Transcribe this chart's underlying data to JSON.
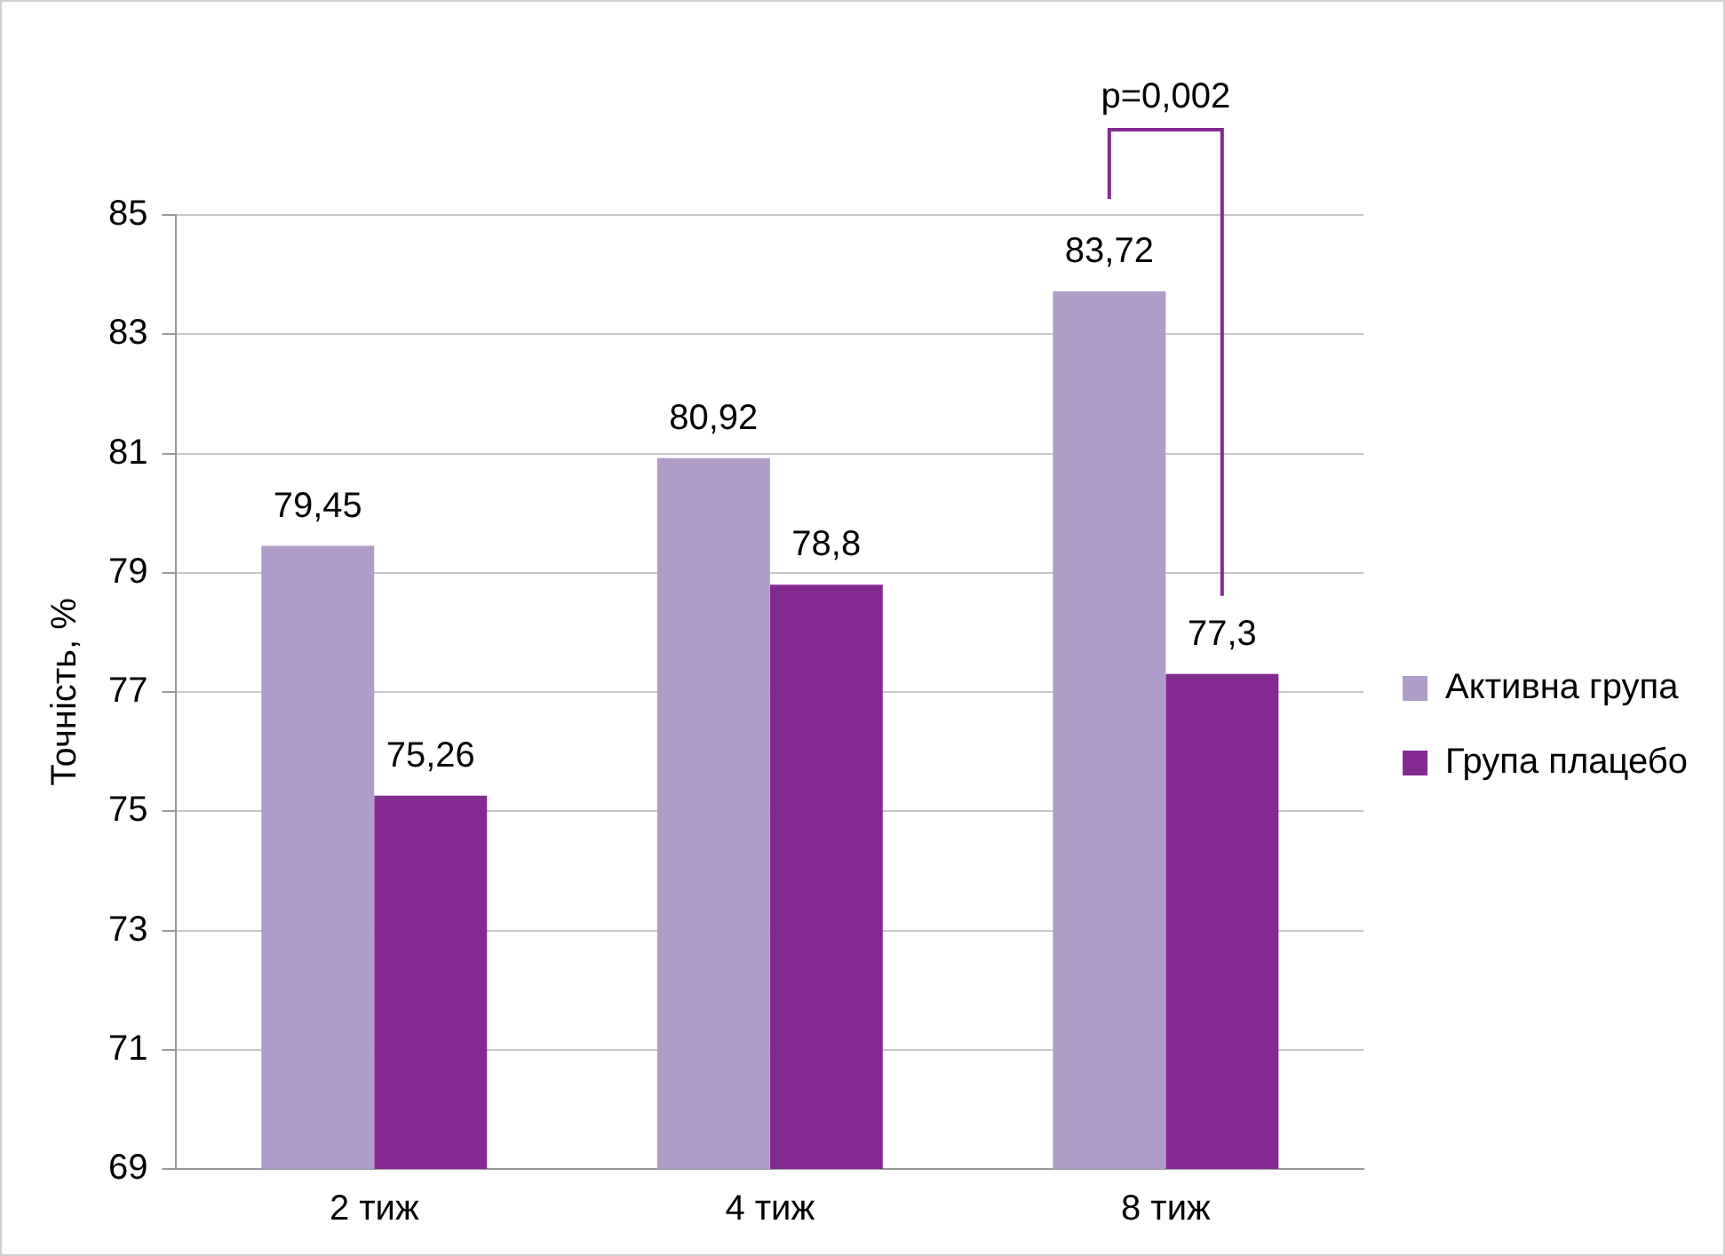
{
  "chart_data": {
    "type": "bar",
    "ylabel": "Точність, %",
    "categories": [
      "2 тиж",
      "4 тиж",
      "8 тиж"
    ],
    "series": [
      {
        "name": "Активна група",
        "color": "#b09cc9",
        "values": [
          79.45,
          80.92,
          83.72
        ],
        "value_labels": [
          "79,45",
          "80,92",
          "83,72"
        ]
      },
      {
        "name": "Група плацебо",
        "color": "#832a91",
        "values": [
          75.26,
          78.8,
          77.3
        ],
        "value_labels": [
          "75,26",
          "78,8",
          "77,3"
        ]
      }
    ],
    "ylim": [
      69,
      85
    ],
    "yticks": [
      69,
      71,
      73,
      75,
      77,
      79,
      81,
      83,
      85
    ],
    "grid": "y",
    "legend": "right",
    "annotations": [
      "p=0,002"
    ]
  }
}
